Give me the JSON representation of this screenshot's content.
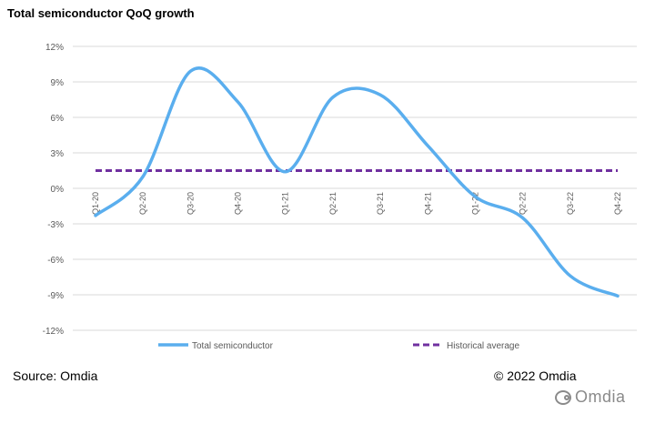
{
  "title": "Total semiconductor QoQ growth",
  "source": "Source: Omdia",
  "copyright": "© 2022 Omdia",
  "watermark": "Omdia",
  "colors": {
    "series_primary": "#5aaeee",
    "series_average": "#7030a0",
    "grid": "#d9d9d9",
    "axis_text": "#595959"
  },
  "chart_data": {
    "type": "line",
    "categories": [
      "Q1-20",
      "Q2-20",
      "Q3-20",
      "Q4-20",
      "Q1-21",
      "Q2-21",
      "Q3-21",
      "Q4-21",
      "Q1-22",
      "Q2-22",
      "Q3-22",
      "Q4-22"
    ],
    "y_ticks": [
      "12%",
      "9%",
      "6%",
      "3%",
      "0%",
      "-3%",
      "-6%",
      "-9%",
      "-12%"
    ],
    "ylim": [
      -12,
      12
    ],
    "grid": true,
    "legend_position": "bottom",
    "series": [
      {
        "name": "Total semiconductor",
        "style": "solid",
        "values": [
          -2.3,
          1.0,
          9.9,
          7.3,
          1.4,
          7.7,
          7.9,
          3.6,
          -0.7,
          -2.5,
          -7.4,
          -9.1
        ]
      },
      {
        "name": "Historical average",
        "style": "dashed",
        "values": [
          1.5,
          1.5,
          1.5,
          1.5,
          1.5,
          1.5,
          1.5,
          1.5,
          1.5,
          1.5,
          1.5,
          1.5
        ]
      }
    ]
  }
}
